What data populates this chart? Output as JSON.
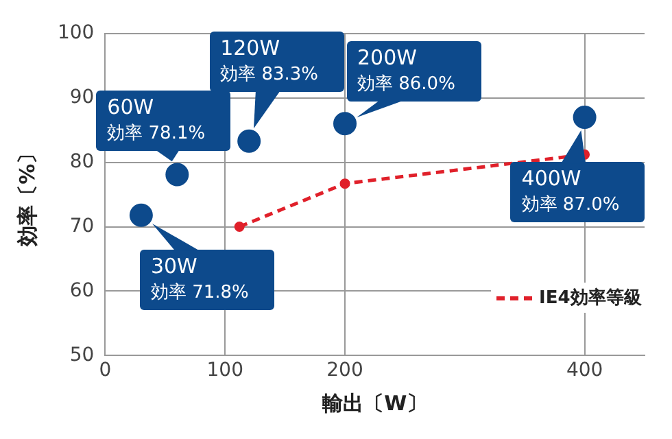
{
  "chart_data": {
    "type": "scatter",
    "xlabel": "輸出〔W〕",
    "ylabel": "効率〔%〕",
    "xlim": [
      0,
      450
    ],
    "xticks": [
      0,
      100,
      200,
      400
    ],
    "ylim": [
      50,
      100
    ],
    "yticks": [
      50,
      60,
      70,
      80,
      90,
      100
    ],
    "grid": true,
    "legend": "bottom right",
    "marker": "circle",
    "series": [
      {
        "type": "scatter",
        "color": "#0d4a8c",
        "x": [
          30,
          60,
          120,
          200,
          400
        ],
        "values": [
          71.8,
          78.1,
          83.3,
          86.0,
          87.0
        ]
      },
      {
        "type": "line",
        "name": "IE4効率等級",
        "color": "#e0202a",
        "x": [
          112,
          200,
          400
        ],
        "values": [
          70,
          76.7,
          81.2
        ],
        "line_style": "dashed"
      }
    ],
    "annotations": [
      {
        "text": "30W 効率 71.8%",
        "x": 30,
        "y": 71.8
      },
      {
        "text": "60W 効率 78.1%",
        "x": 60,
        "y": 78.1
      },
      {
        "text": "120W 効率 83.3%",
        "x": 120,
        "y": 83.3
      },
      {
        "text": "200W 効率 86.0%",
        "x": 200,
        "y": 86.0
      },
      {
        "text": "400W 効率 87.0%",
        "x": 400,
        "y": 87.0
      }
    ]
  }
}
